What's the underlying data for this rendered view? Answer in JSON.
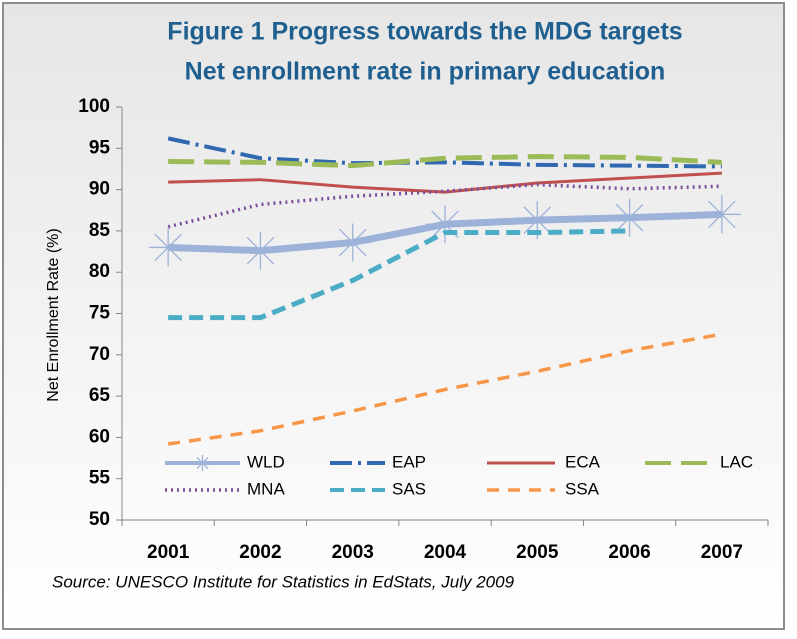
{
  "chart_data": {
    "type": "line",
    "title": "Figure 1  Progress towards the MDG targets",
    "subtitle": "Net enrollment rate in primary education",
    "y_label": "Net Enrollment Rate (%)",
    "source": "Source:  UNESCO Institute for Statistics in EdStats, July 2009",
    "categories": [
      "2001",
      "2002",
      "2003",
      "2004",
      "2005",
      "2006",
      "2007"
    ],
    "ylim": [
      50,
      100
    ],
    "yticks": [
      50,
      55,
      60,
      65,
      70,
      75,
      80,
      85,
      90,
      95,
      100
    ],
    "grid": false,
    "legend": "bottom",
    "series": [
      {
        "name": "WLD",
        "color": "#9db2d9",
        "values": [
          83.0,
          82.6,
          83.6,
          85.8,
          86.3,
          86.6,
          87.0
        ]
      },
      {
        "name": "EAP",
        "color": "#3069b0",
        "values": [
          96.2,
          93.8,
          93.2,
          93.3,
          93.0,
          92.9,
          92.8
        ]
      },
      {
        "name": "ECA",
        "color": "#c0504d",
        "values": [
          90.9,
          91.2,
          90.3,
          89.7,
          90.8,
          91.4,
          92.0
        ]
      },
      {
        "name": "LAC",
        "color": "#9bbb59",
        "values": [
          93.4,
          93.3,
          92.9,
          93.8,
          94.0,
          93.9,
          93.3
        ]
      },
      {
        "name": "MNA",
        "color": "#7a4f9e",
        "values": [
          85.5,
          88.2,
          89.2,
          89.8,
          90.6,
          90.1,
          90.4
        ]
      },
      {
        "name": "SAS",
        "color": "#4bacc6",
        "values": [
          74.5,
          74.5,
          79.0,
          84.8,
          84.8,
          85.0,
          null
        ]
      },
      {
        "name": "SSA",
        "color": "#f79646",
        "values": [
          59.2,
          60.8,
          63.2,
          65.8,
          68.0,
          70.5,
          72.5
        ]
      }
    ]
  }
}
